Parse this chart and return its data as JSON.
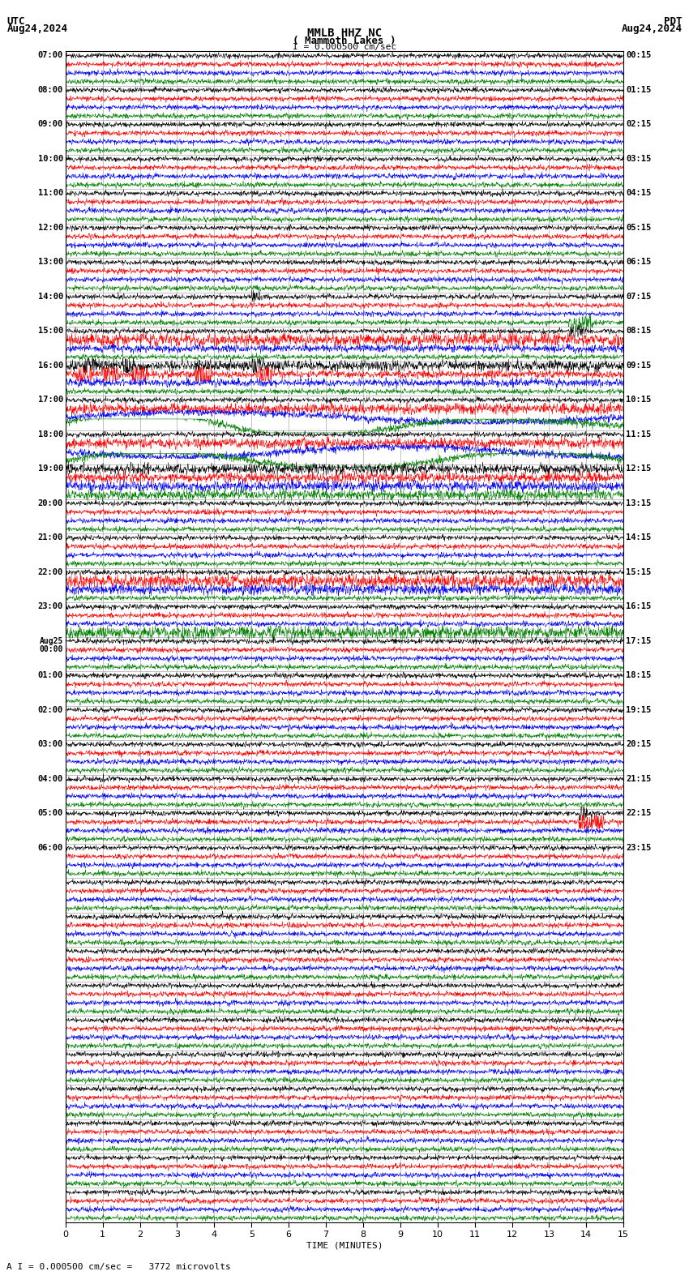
{
  "title_line1": "MMLB HHZ NC",
  "title_line2": "( Mammoth Lakes )",
  "title_scale": "I = 0.000500 cm/sec",
  "utc_label": "UTC",
  "utc_date": "Aug24,2024",
  "pdt_label": "PDT",
  "pdt_date": "Aug24,2024",
  "bottom_label": "A I = 0.000500 cm/sec =   3772 microvolts",
  "xlabel": "TIME (MINUTES)",
  "bg_color": "#ffffff",
  "line_colors": [
    "#000000",
    "#ff0000",
    "#0000ff",
    "#008000"
  ],
  "grid_color": "#aaaaaa",
  "n_rows": 34,
  "minutes_per_row": 15,
  "left_times_utc": [
    "07:00",
    "08:00",
    "09:00",
    "10:00",
    "11:00",
    "12:00",
    "13:00",
    "14:00",
    "15:00",
    "16:00",
    "17:00",
    "18:00",
    "19:00",
    "20:00",
    "21:00",
    "22:00",
    "23:00",
    "Aug25\n00:00",
    "01:00",
    "02:00",
    "03:00",
    "04:00",
    "05:00",
    "06:00"
  ],
  "right_times_pdt": [
    "00:15",
    "01:15",
    "02:15",
    "03:15",
    "04:15",
    "05:15",
    "06:15",
    "07:15",
    "08:15",
    "09:15",
    "10:15",
    "11:15",
    "12:15",
    "13:15",
    "14:15",
    "15:15",
    "16:15",
    "17:15",
    "18:15",
    "19:15",
    "20:15",
    "21:15",
    "22:15",
    "23:15"
  ],
  "noise_scale": 0.035,
  "fig_width": 8.5,
  "fig_height": 15.84
}
